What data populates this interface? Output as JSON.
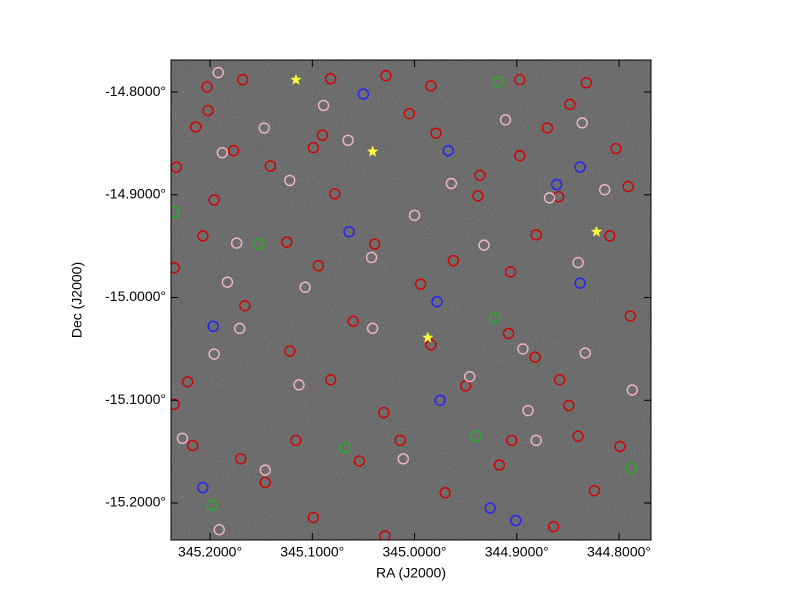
{
  "chart_data": {
    "type": "scatter",
    "xlabel": "RA (J2000)",
    "ylabel": "Dec (J2000)",
    "xlim": [
      345.2382,
      344.7687
    ],
    "ylim": [
      -15.236,
      -14.7688
    ],
    "xticks": [
      {
        "value": 345.2,
        "label": "345.2000°"
      },
      {
        "value": 345.1,
        "label": "345.1000°"
      },
      {
        "value": 345.0,
        "label": "345.0000°"
      },
      {
        "value": 344.9,
        "label": "344.9000°"
      },
      {
        "value": 344.8,
        "label": "344.8000°"
      }
    ],
    "yticks": [
      {
        "value": -14.8,
        "label": "-14.8000°"
      },
      {
        "value": -14.9,
        "label": "-14.9000°"
      },
      {
        "value": -15.0,
        "label": "-15.0000°"
      },
      {
        "value": -15.1,
        "label": "-15.1000°"
      },
      {
        "value": -15.2,
        "label": "-15.2000°"
      }
    ],
    "series": [
      {
        "color": "#d40000",
        "marker": "circle",
        "x": [
          345.203,
          345.168,
          345.082,
          345.028,
          344.984,
          344.897,
          344.832,
          345.202,
          345.005,
          344.848,
          345.214,
          345.09,
          344.979,
          344.87,
          344.803,
          345.177,
          345.099,
          344.897,
          345.233,
          345.141,
          344.936,
          344.791,
          345.196,
          345.078,
          344.938,
          344.859,
          345.207,
          345.125,
          345.039,
          344.962,
          344.881,
          344.809,
          345.235,
          345.094,
          344.994,
          344.906,
          344.789,
          345.166,
          345.06,
          344.908,
          345.122,
          344.984,
          344.882,
          345.222,
          345.082,
          344.95,
          344.858,
          345.235,
          345.03,
          344.849,
          345.217,
          345.116,
          345.014,
          344.84,
          345.17,
          345.054,
          344.917,
          345.146,
          344.97,
          344.824,
          345.099,
          345.029,
          344.864,
          344.799,
          344.905
        ],
        "y": [
          -14.795,
          -14.788,
          -14.787,
          -14.784,
          -14.794,
          -14.788,
          -14.791,
          -14.818,
          -14.821,
          -14.812,
          -14.834,
          -14.842,
          -14.84,
          -14.835,
          -14.855,
          -14.857,
          -14.854,
          -14.862,
          -14.873,
          -14.872,
          -14.881,
          -14.892,
          -14.905,
          -14.899,
          -14.901,
          -14.902,
          -14.94,
          -14.946,
          -14.948,
          -14.964,
          -14.939,
          -14.94,
          -14.971,
          -14.969,
          -14.987,
          -14.975,
          -15.018,
          -15.008,
          -15.023,
          -15.035,
          -15.052,
          -15.046,
          -15.058,
          -15.082,
          -15.08,
          -15.086,
          -15.08,
          -15.104,
          -15.112,
          -15.105,
          -15.144,
          -15.139,
          -15.139,
          -15.135,
          -15.157,
          -15.159,
          -15.163,
          -15.18,
          -15.19,
          -15.188,
          -15.214,
          -15.232,
          -15.223,
          -15.145,
          -15.139
        ]
      },
      {
        "color": "#f2b8c4",
        "marker": "circle",
        "x": [
          345.192,
          345.089,
          345.147,
          345.065,
          345.188,
          344.964,
          345.122,
          345.0,
          344.868,
          344.814,
          345.174,
          345.042,
          344.84,
          345.183,
          345.107,
          345.171,
          345.041,
          344.894,
          344.833,
          345.196,
          345.113,
          344.946,
          344.889,
          344.787,
          345.227,
          344.881,
          345.011,
          345.146,
          345.191,
          344.836,
          344.911,
          344.932
        ],
        "y": [
          -14.781,
          -14.813,
          -14.835,
          -14.847,
          -14.859,
          -14.889,
          -14.886,
          -14.92,
          -14.903,
          -14.895,
          -14.947,
          -14.961,
          -14.966,
          -14.985,
          -14.99,
          -15.03,
          -15.03,
          -15.05,
          -15.054,
          -15.055,
          -15.085,
          -15.077,
          -15.11,
          -15.09,
          -15.137,
          -15.139,
          -15.157,
          -15.168,
          -15.226,
          -14.83,
          -14.827,
          -14.949
        ]
      },
      {
        "color": "#1e22ff",
        "marker": "circle",
        "x": [
          345.05,
          344.967,
          344.861,
          345.064,
          344.978,
          344.838,
          345.197,
          344.975,
          345.207,
          344.926,
          344.838,
          344.901
        ],
        "y": [
          -14.802,
          -14.857,
          -14.89,
          -14.936,
          -15.004,
          -14.986,
          -15.028,
          -15.1,
          -15.185,
          -15.205,
          -14.873,
          -15.217
        ]
      },
      {
        "color": "#22b022",
        "marker": "circle",
        "x": [
          344.918,
          345.235,
          345.153,
          344.922,
          345.068,
          344.94,
          344.788,
          345.198
        ],
        "y": [
          -14.79,
          -14.917,
          -14.948,
          -15.02,
          -15.146,
          -15.135,
          -15.166,
          -15.202
        ]
      },
      {
        "color": "#ffff33",
        "marker": "star",
        "x": [
          345.116,
          345.041,
          344.987,
          344.822
        ],
        "y": [
          -14.788,
          -14.858,
          -15.039,
          -14.936
        ]
      }
    ]
  }
}
